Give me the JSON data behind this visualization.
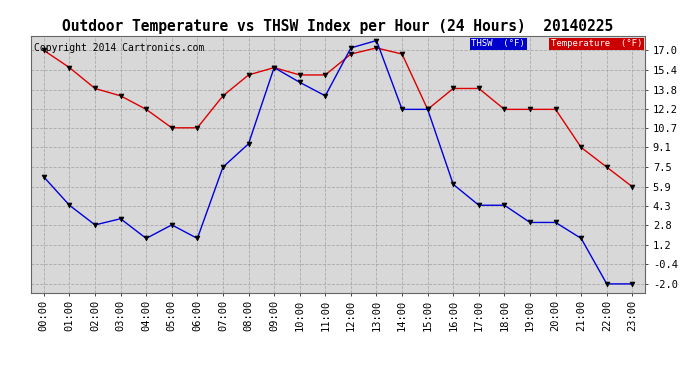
{
  "title": "Outdoor Temperature vs THSW Index per Hour (24 Hours)  20140225",
  "copyright": "Copyright 2014 Cartronics.com",
  "hours": [
    "00:00",
    "01:00",
    "02:00",
    "03:00",
    "04:00",
    "05:00",
    "06:00",
    "07:00",
    "08:00",
    "09:00",
    "10:00",
    "11:00",
    "12:00",
    "13:00",
    "14:00",
    "15:00",
    "16:00",
    "17:00",
    "18:00",
    "19:00",
    "20:00",
    "21:00",
    "22:00",
    "23:00"
  ],
  "thsw": [
    6.7,
    4.4,
    2.8,
    3.3,
    1.7,
    2.8,
    1.7,
    7.5,
    9.4,
    15.6,
    14.4,
    13.3,
    17.2,
    17.8,
    12.2,
    12.2,
    6.1,
    4.4,
    4.4,
    3.0,
    3.0,
    1.7,
    -2.0,
    -2.0
  ],
  "temperature": [
    17.0,
    15.6,
    13.9,
    13.3,
    12.2,
    10.7,
    10.7,
    13.3,
    15.0,
    15.6,
    15.0,
    15.0,
    16.7,
    17.2,
    16.7,
    12.2,
    13.9,
    13.9,
    12.2,
    12.2,
    12.2,
    9.1,
    7.5,
    5.9
  ],
  "ylim": [
    -2.7,
    18.2
  ],
  "yticks": [
    -2.0,
    -0.4,
    1.2,
    2.8,
    4.3,
    5.9,
    7.5,
    9.1,
    10.7,
    12.2,
    13.8,
    15.4,
    17.0
  ],
  "thsw_color": "#0000dd",
  "temp_color": "#dd0000",
  "bg_color": "#ffffff",
  "plot_bg_color": "#d8d8d8",
  "grid_color": "#aaaaaa",
  "title_fontsize": 10.5,
  "copyright_fontsize": 7,
  "tick_fontsize": 7.5,
  "legend_thsw_bg": "#0000cc",
  "legend_temp_bg": "#cc0000",
  "legend_thsw_text": "THSW  (°F)",
  "legend_temp_text": "Temperature  (°F)"
}
